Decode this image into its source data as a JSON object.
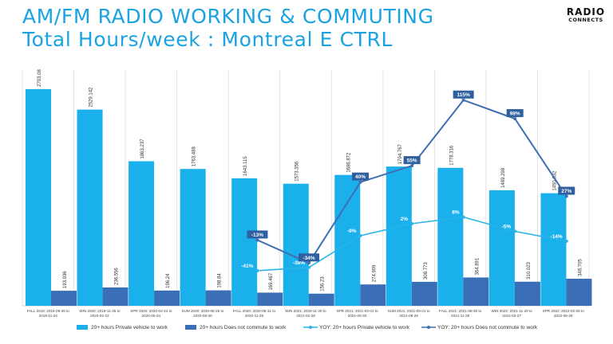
{
  "header": {
    "title_line1": "AM/FM RADIO WORKING & COMMUTING",
    "title_line2": "Total Hours/week : Montreal E CTRL",
    "logo_line1": "RADIO",
    "logo_line2": "CONNECTS"
  },
  "colors": {
    "title": "#1aa3e0",
    "bar_private": "#1ab0ec",
    "bar_commute": "#3a6fb8",
    "line_private": "#2ab4e8",
    "line_commute": "#3f6fb0",
    "grid": "#e3e3e3"
  },
  "chart_data": {
    "type": "bar",
    "categories": [
      "FALL 2019: 2019-09-26 to 2019-11-24",
      "WIN 2020: 2019-11-25 to 2020-02-23",
      "SPR 2020: 2020-02-24 to 2020-05-24",
      "SUM 2020: 2020-05-25 to 2020-08-30",
      "FALL 2020: 2020-08-31 to 2020-11-29",
      "WIN 2021: 2020-11-30 to 2021-02-28",
      "SPR 2021: 2021-03-01 to 2021-05-30",
      "SUM 2021: 2021-05-31 to 2021-08-29",
      "FALL 2021: 2021-08-30 to 2021-11-28",
      "WIN 2022: 2021-11-29 to 2022-02-27",
      "SPR 2022: 2022-02-28 to 2022-05-29"
    ],
    "bar_series": [
      {
        "name": "20+ hours  Private vehicle to work",
        "values": [
          2793.08,
          2529.142,
          1863.237,
          1763.488,
          1643.115,
          1573.356,
          1686.872,
          1794.767,
          1778.316,
          1489.298,
          1450.632
        ],
        "labels": [
          "2793.08",
          "2529.142",
          "1863.237",
          "1763.488",
          "1643.115",
          "1573.356",
          "1686.872",
          "1794.767",
          "1778.316",
          "1489.298",
          "1450.632"
        ]
      },
      {
        "name": "20+ hours  Does not commute to work",
        "values": [
          193.936,
          236.556,
          196.24,
          198.84,
          169.467,
          156.23,
          274.909,
          308.773,
          364.891,
          310.023,
          348.705
        ],
        "labels": [
          "193.936",
          "236.556",
          "196.24",
          "198.84",
          "169.467",
          "156.23",
          "274.909",
          "308.773",
          "364.891",
          "310.023",
          "348.705"
        ]
      }
    ],
    "line_series": [
      {
        "name": "YOY: 20+ hours  Private vehicle to work",
        "values": [
          null,
          null,
          null,
          null,
          -41,
          -38,
          -9,
          2,
          8,
          -5,
          -14
        ],
        "labels": [
          "",
          "",
          "",
          "",
          "-41%",
          "-38%",
          "-9%",
          "2%",
          "8%",
          "-5%",
          "-14%"
        ]
      },
      {
        "name": "YOY: 20+ hours  Does not commute to work",
        "values": [
          null,
          null,
          null,
          null,
          -13,
          -34,
          40,
          55,
          115,
          98,
          27
        ],
        "labels": [
          "",
          "",
          "",
          "",
          "-13%",
          "-34%",
          "40%",
          "55%",
          "115%",
          "98%",
          "27%"
        ]
      }
    ],
    "ylim": [
      0,
      3100
    ],
    "yoy_ylim": [
      -60,
      125
    ],
    "grid": "vertical",
    "legend": "bottom"
  }
}
